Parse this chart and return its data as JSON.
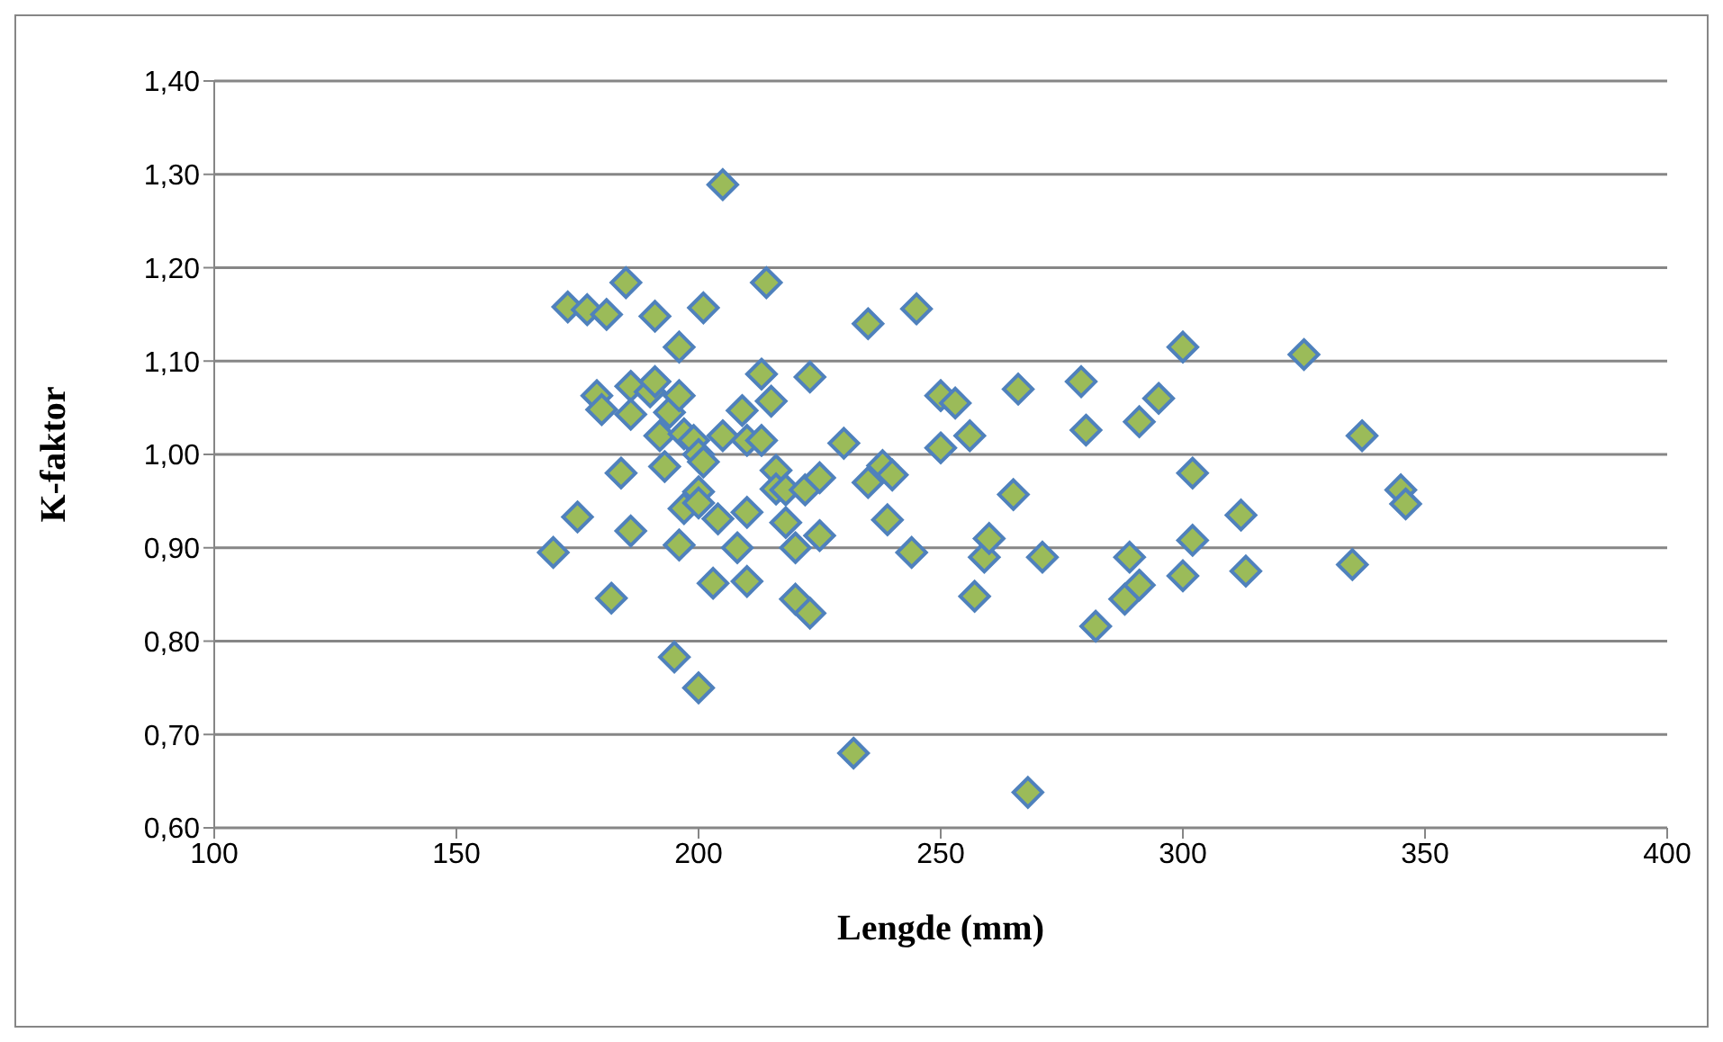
{
  "chart_data": {
    "type": "scatter",
    "xlabel": "Lengde (mm)",
    "ylabel": "K-faktor",
    "x": [
      170,
      173,
      175,
      177,
      179,
      180,
      181,
      182,
      184,
      185,
      186,
      186,
      186,
      190,
      191,
      191,
      192,
      193,
      194,
      195,
      196,
      196,
      196,
      197,
      197,
      199,
      200,
      200,
      200,
      200,
      201,
      201,
      203,
      204,
      205,
      205,
      208,
      209,
      210,
      210,
      210,
      213,
      213,
      214,
      215,
      216,
      216,
      218,
      218,
      220,
      220,
      222,
      223,
      223,
      225,
      225,
      230,
      232,
      235,
      235,
      238,
      239,
      240,
      244,
      245,
      250,
      250,
      253,
      256,
      257,
      259,
      260,
      265,
      266,
      268,
      271,
      279,
      280,
      282,
      288,
      289,
      291,
      291,
      295,
      300,
      300,
      302,
      302,
      312,
      313,
      325,
      335,
      337,
      345,
      346
    ],
    "series": [
      {
        "color": "#9bbb59",
        "values": [
          0.895,
          1.158,
          0.933,
          1.155,
          1.063,
          1.048,
          1.15,
          0.846,
          0.98,
          1.184,
          1.073,
          0.918,
          1.043,
          1.067,
          1.148,
          1.078,
          1.02,
          0.987,
          1.045,
          0.783,
          1.115,
          1.063,
          0.903,
          0.942,
          1.022,
          1.015,
          0.75,
          0.96,
          0.948,
          1.0,
          1.157,
          0.992,
          0.862,
          0.931,
          1.289,
          1.02,
          0.9,
          1.047,
          0.864,
          0.938,
          1.015,
          1.086,
          1.015,
          1.184,
          1.057,
          0.983,
          0.963,
          0.927,
          0.962,
          0.845,
          0.9,
          0.962,
          0.83,
          1.083,
          0.913,
          0.975,
          1.012,
          0.68,
          1.14,
          0.97,
          0.988,
          0.93,
          0.978,
          0.895,
          1.156,
          1.063,
          1.007,
          1.055,
          1.02,
          0.848,
          0.89,
          0.91,
          0.957,
          1.07,
          0.638,
          0.89,
          1.078,
          1.026,
          0.816,
          0.845,
          0.89,
          0.86,
          1.035,
          1.06,
          1.115,
          0.87,
          0.98,
          0.908,
          0.935,
          0.875,
          1.107,
          0.882,
          1.02,
          0.962,
          0.947
        ]
      }
    ],
    "xlim": [
      100,
      400
    ],
    "xticks": [
      100,
      150,
      200,
      250,
      300,
      350,
      400
    ],
    "ylim": [
      0.6,
      1.4
    ],
    "yticks": [
      {
        "value": 0.6,
        "label": "0,60"
      },
      {
        "value": 0.7,
        "label": "0,70"
      },
      {
        "value": 0.8,
        "label": "0,80"
      },
      {
        "value": 0.9,
        "label": "0,90"
      },
      {
        "value": 1.0,
        "label": "1,00"
      },
      {
        "value": 1.1,
        "label": "1,10"
      },
      {
        "value": 1.2,
        "label": "1,20"
      },
      {
        "value": 1.3,
        "label": "1,30"
      },
      {
        "value": 1.4,
        "label": "1,40"
      }
    ],
    "grid": "y",
    "marker": "diamond",
    "legend": false
  }
}
